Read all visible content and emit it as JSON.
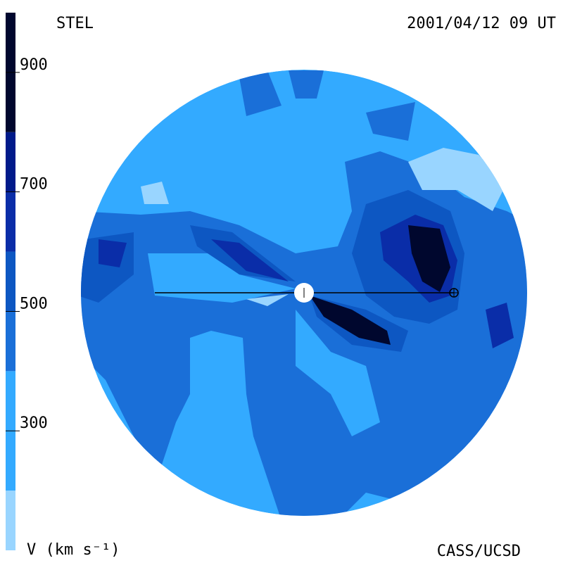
{
  "chart_data": {
    "type": "heatmap",
    "title": "STEL",
    "date": "2001/04/12 09 UT",
    "credit": "CASS/UCSD",
    "colorbar_label": "V (km s⁻¹)",
    "colorbar": {
      "lim": [
        100,
        1000
      ],
      "ticks": [
        300,
        500,
        700,
        900
      ],
      "bounds": [
        100,
        200,
        400,
        500,
        600,
        700,
        800,
        1000
      ],
      "colors": [
        "#99d5ff",
        "#33aaff",
        "#1a6fd8",
        "#0d57c2",
        "#0a2da8",
        "#001a8a",
        "#00072e"
      ]
    }
  }
}
